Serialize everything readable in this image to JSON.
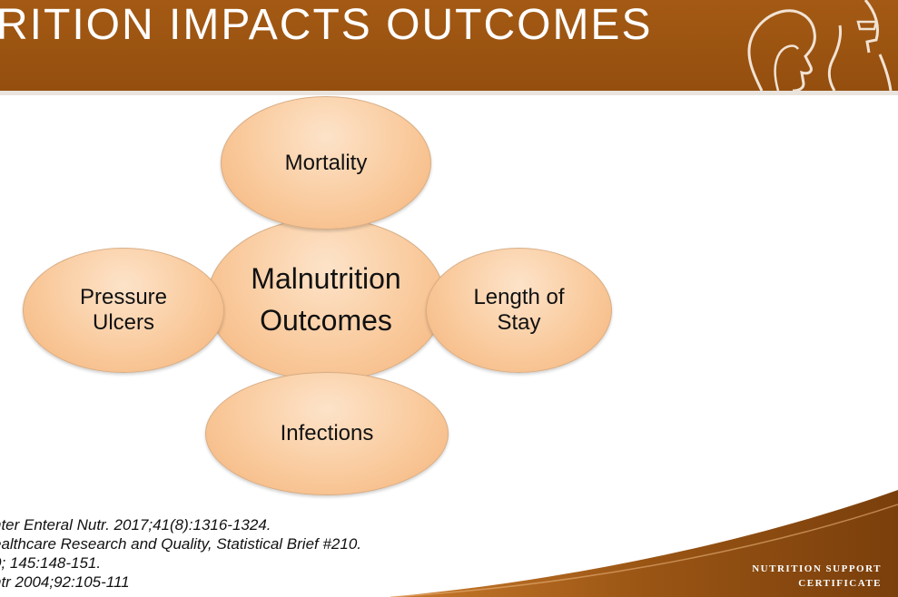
{
  "header": {
    "title": "RITION IMPACTS OUTCOMES"
  },
  "diagram": {
    "center": {
      "line1": "Malnutrition",
      "line2": "Outcomes"
    },
    "top": "Mortality",
    "left": {
      "line1": "Pressure",
      "line2": "Ulcers"
    },
    "right": {
      "line1": "Length of",
      "line2": "Stay"
    },
    "bottom": "Infections"
  },
  "references": [
    "nter Enteral Nutr. 2017;41(8):1316-1324.",
    "ealthcare Research and Quality, Statistical Brief #210.",
    "0; 145:148-151.",
    "ntr 2004;92:105-111"
  ],
  "branding": {
    "line1": "NUTRITION SUPPORT",
    "line2": "CERTIFICATE"
  },
  "colors": {
    "header": "#a45a14",
    "node_fill": "#f9c899",
    "node_border": "#d8ad84",
    "footer": "#8b4a10"
  }
}
